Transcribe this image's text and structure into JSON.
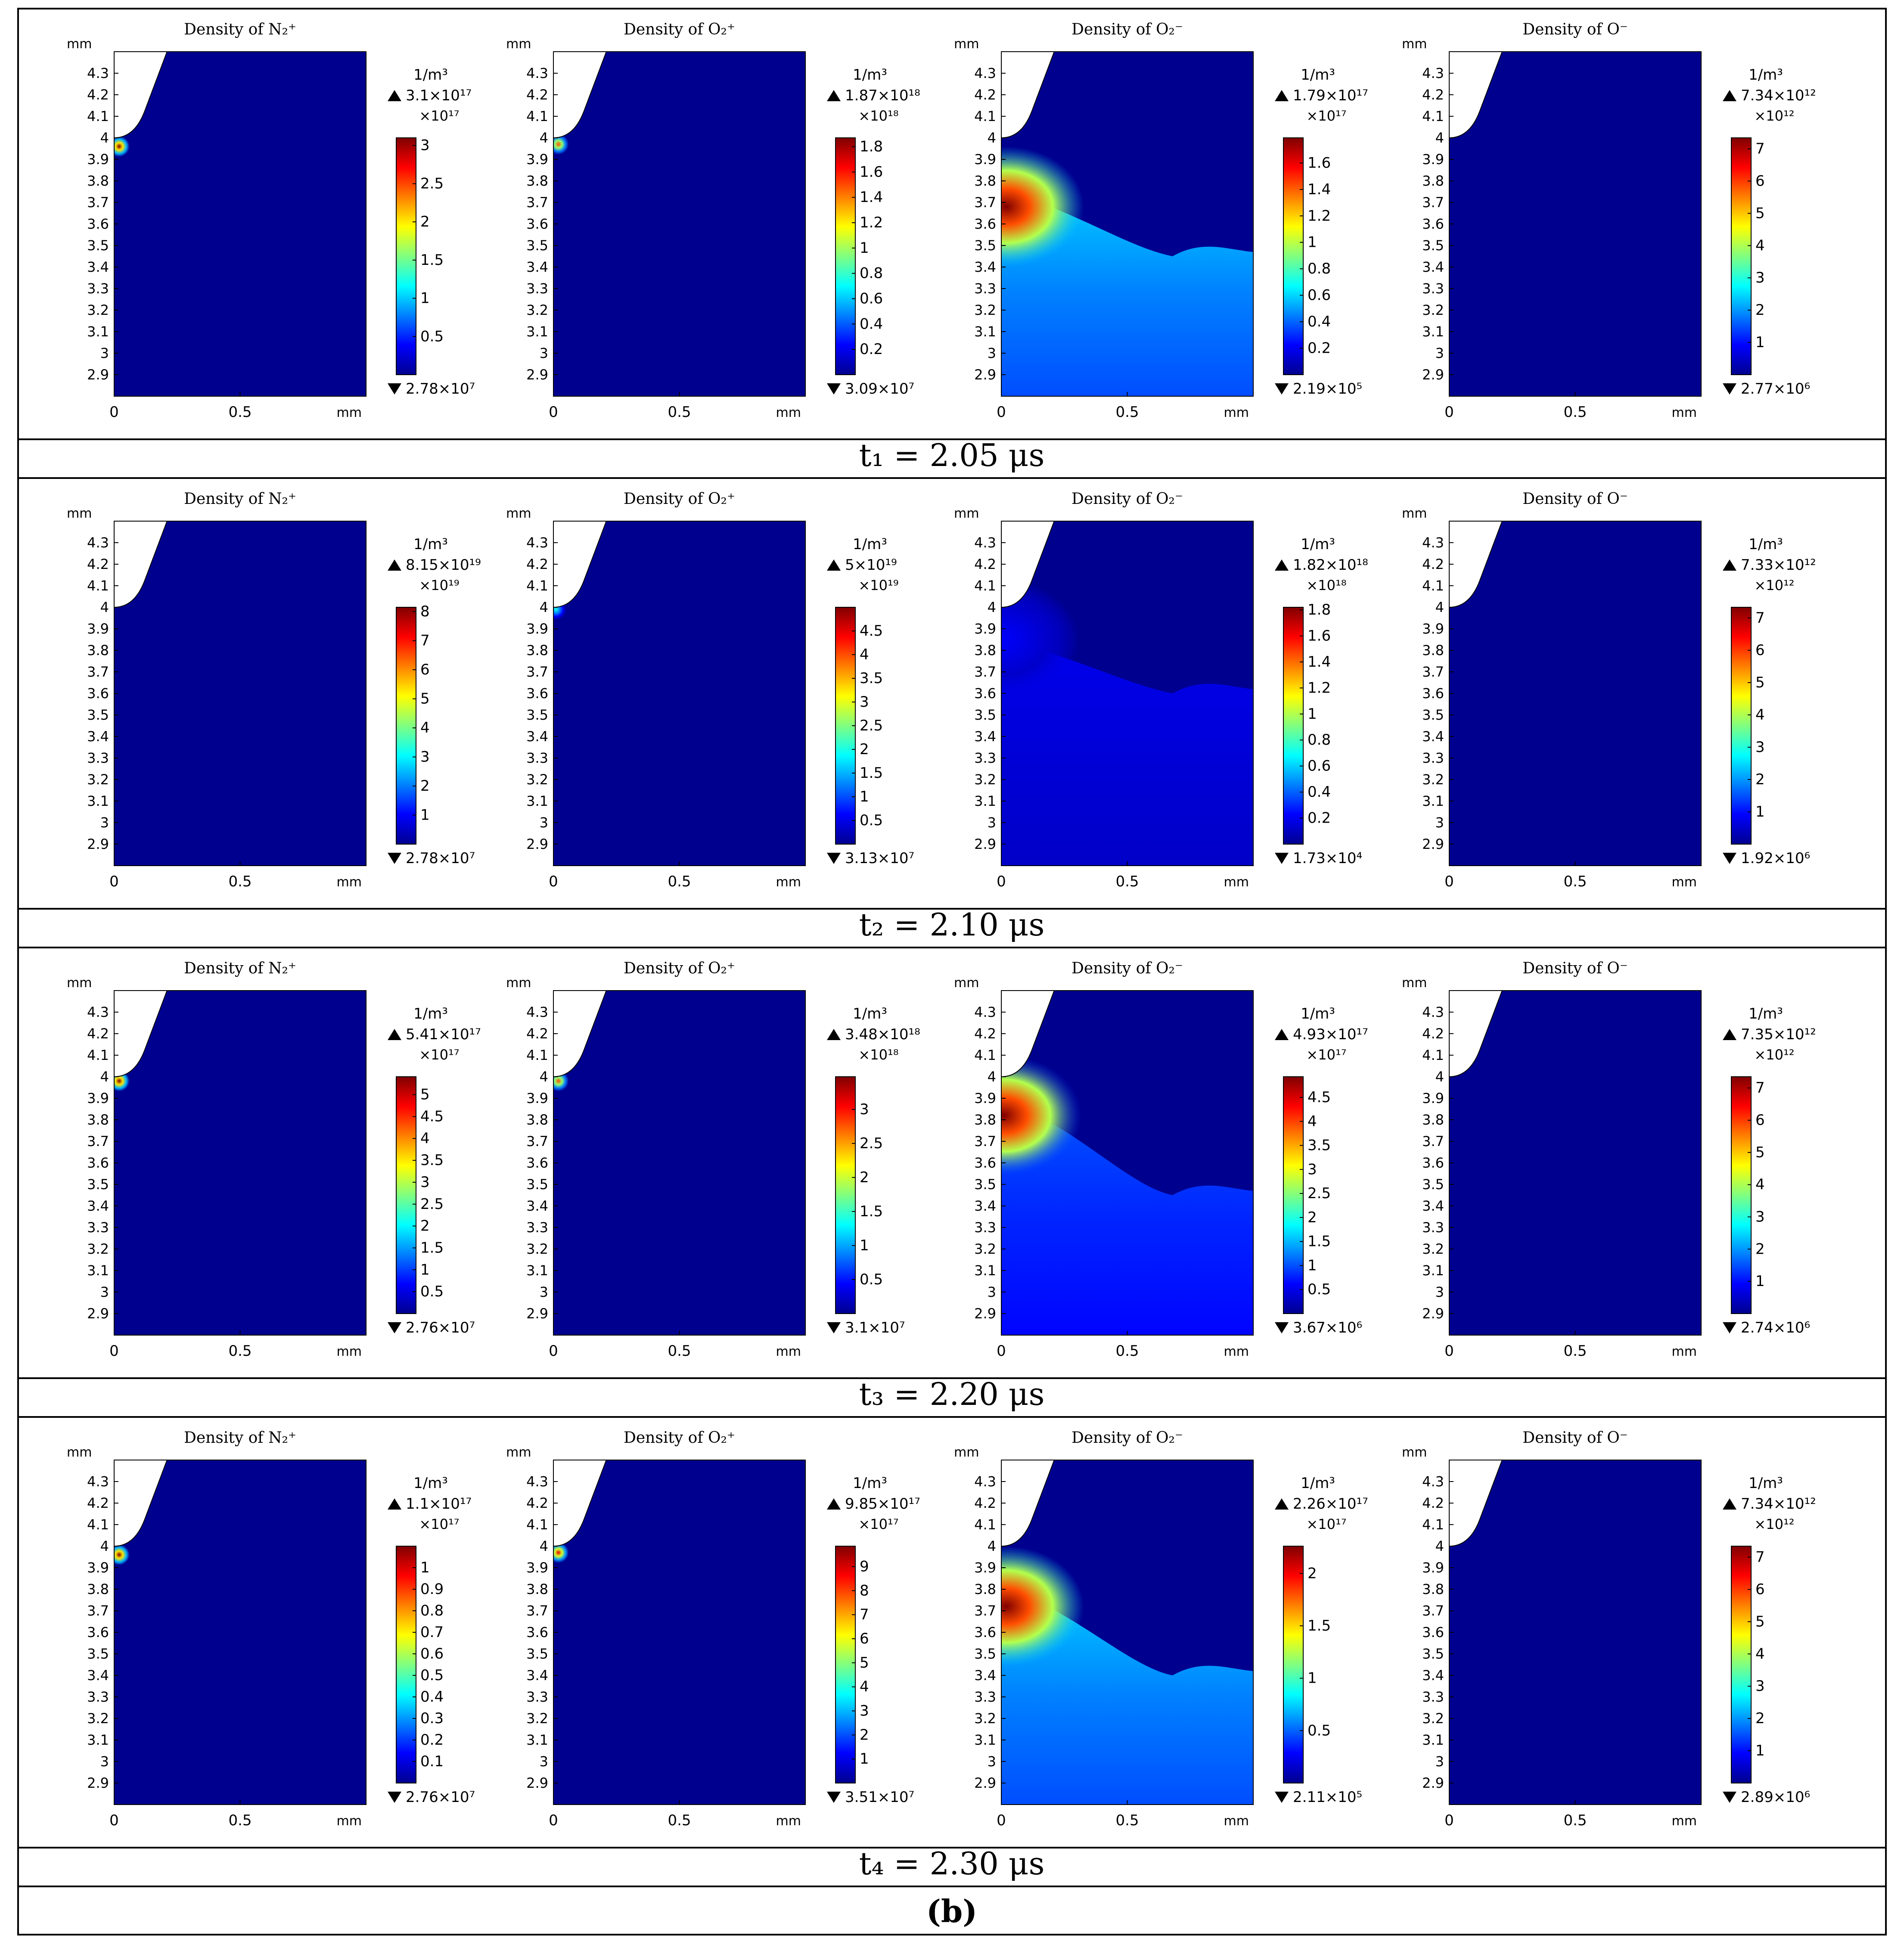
{
  "figure_label": "(b)",
  "rows": [
    {
      "time_label": "t₁ = 2.05 μs"
    },
    {
      "time_label": "t₂ = 2.10 μs"
    },
    {
      "time_label": "t₃ = 2.20 μs"
    },
    {
      "time_label": "t₄ = 2.30 μs"
    }
  ],
  "colors": {
    "field_background": "#00008f",
    "colormap": [
      "#00008f",
      "#0000ff",
      "#0080ff",
      "#00ffff",
      "#80ff80",
      "#ffff00",
      "#ff8000",
      "#ff0000",
      "#800000"
    ]
  },
  "chart_data": [
    {
      "type": "heatmap",
      "row": 0,
      "col": 0,
      "title": "Density of N₂⁺",
      "unit": "1/m³",
      "max_label": "3.1×10¹⁷",
      "min_label": "2.78×10⁷",
      "multiplier_label": "×10¹⁷",
      "ticks": [
        "3",
        "2.5",
        "2",
        "1.5",
        "1",
        "0.5"
      ],
      "tick_values": [
        3,
        2.5,
        2,
        1.5,
        1,
        0.5
      ],
      "range": [
        0,
        3.1
      ],
      "xlabel": "mm",
      "ylabel": "mm",
      "xlim": [
        0,
        1
      ],
      "ylim": [
        2.8,
        4.4
      ],
      "x_ticks": [
        "0",
        "0.5"
      ],
      "y_ticks": [
        "4.3",
        "4.2",
        "4.1",
        "4",
        "3.9",
        "3.8",
        "3.7",
        "3.6",
        "3.5",
        "3.4",
        "3.3",
        "3.2",
        "3.1",
        "3",
        "2.9"
      ],
      "hotspot": {
        "kind": "spot",
        "x": 0.02,
        "y": 3.96,
        "peak": 1.0
      }
    },
    {
      "type": "heatmap",
      "row": 0,
      "col": 1,
      "title": "Density of O₂⁺",
      "unit": "1/m³",
      "max_label": "1.87×10¹⁸",
      "min_label": "3.09×10⁷",
      "multiplier_label": "×10¹⁸",
      "ticks": [
        "1.8",
        "1.6",
        "1.4",
        "1.2",
        "1",
        "0.8",
        "0.6",
        "0.4",
        "0.2"
      ],
      "tick_values": [
        1.8,
        1.6,
        1.4,
        1.2,
        1,
        0.8,
        0.6,
        0.4,
        0.2
      ],
      "range": [
        0,
        1.87
      ],
      "xlabel": "mm",
      "ylabel": "mm",
      "xlim": [
        0,
        1
      ],
      "ylim": [
        2.8,
        4.4
      ],
      "x_ticks": [
        "0",
        "0.5"
      ],
      "y_ticks": [
        "4.3",
        "4.2",
        "4.1",
        "4",
        "3.9",
        "3.8",
        "3.7",
        "3.6",
        "3.5",
        "3.4",
        "3.3",
        "3.2",
        "3.1",
        "3",
        "2.9"
      ],
      "hotspot": {
        "kind": "spot",
        "x": 0.02,
        "y": 3.97,
        "peak": 0.8
      }
    },
    {
      "type": "heatmap",
      "row": 0,
      "col": 2,
      "title": "Density of O₂⁻",
      "unit": "1/m³",
      "max_label": "1.79×10¹⁷",
      "min_label": "2.19×10⁵",
      "multiplier_label": "×10¹⁷",
      "ticks": [
        "1.6",
        "1.4",
        "1.2",
        "1",
        "0.8",
        "0.6",
        "0.4",
        "0.2"
      ],
      "tick_values": [
        1.6,
        1.4,
        1.2,
        1,
        0.8,
        0.6,
        0.4,
        0.2
      ],
      "range": [
        0,
        1.79
      ],
      "xlabel": "mm",
      "ylabel": "mm",
      "xlim": [
        0,
        1
      ],
      "ylim": [
        2.8,
        4.4
      ],
      "x_ticks": [
        "0",
        "0.5"
      ],
      "y_ticks": [
        "4.3",
        "4.2",
        "4.1",
        "4",
        "3.9",
        "3.8",
        "3.7",
        "3.6",
        "3.5",
        "3.4",
        "3.3",
        "3.2",
        "3.1",
        "3",
        "2.9"
      ],
      "hotspot": {
        "kind": "plume",
        "x": 0.02,
        "y": 3.68,
        "peak": 1.0,
        "front_y": 3.75,
        "tail_y": 3.45,
        "background_level": 0.25
      }
    },
    {
      "type": "heatmap",
      "row": 0,
      "col": 3,
      "title": "Density of O⁻",
      "unit": "1/m³",
      "max_label": "7.34×10¹²",
      "min_label": "2.77×10⁶",
      "multiplier_label": "×10¹²",
      "ticks": [
        "7",
        "6",
        "5",
        "4",
        "3",
        "2",
        "1"
      ],
      "tick_values": [
        7,
        6,
        5,
        4,
        3,
        2,
        1
      ],
      "range": [
        0,
        7.34
      ],
      "xlabel": "mm",
      "ylabel": "mm",
      "xlim": [
        0,
        1
      ],
      "ylim": [
        2.8,
        4.4
      ],
      "x_ticks": [
        "0",
        "0.5"
      ],
      "y_ticks": [
        "4.3",
        "4.2",
        "4.1",
        "4",
        "3.9",
        "3.8",
        "3.7",
        "3.6",
        "3.5",
        "3.4",
        "3.3",
        "3.2",
        "3.1",
        "3",
        "2.9"
      ],
      "hotspot": {
        "kind": "none"
      }
    },
    {
      "type": "heatmap",
      "row": 1,
      "col": 0,
      "title": "Density of N₂⁺",
      "unit": "1/m³",
      "max_label": "8.15×10¹⁹",
      "min_label": "2.78×10⁷",
      "multiplier_label": "×10¹⁹",
      "ticks": [
        "8",
        "7",
        "6",
        "5",
        "4",
        "3",
        "2",
        "1"
      ],
      "tick_values": [
        8,
        7,
        6,
        5,
        4,
        3,
        2,
        1
      ],
      "range": [
        0,
        8.15
      ],
      "xlabel": "mm",
      "ylabel": "mm",
      "xlim": [
        0,
        1
      ],
      "ylim": [
        2.8,
        4.4
      ],
      "x_ticks": [
        "0",
        "0.5"
      ],
      "y_ticks": [
        "4.3",
        "4.2",
        "4.1",
        "4",
        "3.9",
        "3.8",
        "3.7",
        "3.6",
        "3.5",
        "3.4",
        "3.3",
        "3.2",
        "3.1",
        "3",
        "2.9"
      ],
      "hotspot": {
        "kind": "none"
      }
    },
    {
      "type": "heatmap",
      "row": 1,
      "col": 1,
      "title": "Density of O₂⁺",
      "unit": "1/m³",
      "max_label": "5×10¹⁹",
      "min_label": "3.13×10⁷",
      "multiplier_label": "×10¹⁹",
      "ticks": [
        "4.5",
        "4",
        "3.5",
        "3",
        "2.5",
        "2",
        "1.5",
        "1",
        "0.5"
      ],
      "tick_values": [
        4.5,
        4,
        3.5,
        3,
        2.5,
        2,
        1.5,
        1,
        0.5
      ],
      "range": [
        0,
        5
      ],
      "xlabel": "mm",
      "ylabel": "mm",
      "xlim": [
        0,
        1
      ],
      "ylim": [
        2.8,
        4.4
      ],
      "x_ticks": [
        "0",
        "0.5"
      ],
      "y_ticks": [
        "4.3",
        "4.2",
        "4.1",
        "4",
        "3.9",
        "3.8",
        "3.7",
        "3.6",
        "3.5",
        "3.4",
        "3.3",
        "3.2",
        "3.1",
        "3",
        "2.9"
      ],
      "hotspot": {
        "kind": "spot",
        "x": 0.01,
        "y": 3.99,
        "peak": 0.4
      }
    },
    {
      "type": "heatmap",
      "row": 1,
      "col": 2,
      "title": "Density of O₂⁻",
      "unit": "1/m³",
      "max_label": "1.82×10¹⁸",
      "min_label": "1.73×10⁴",
      "multiplier_label": "×10¹⁸",
      "ticks": [
        "1.8",
        "1.6",
        "1.4",
        "1.2",
        "1",
        "0.8",
        "0.6",
        "0.4",
        "0.2"
      ],
      "tick_values": [
        1.8,
        1.6,
        1.4,
        1.2,
        1,
        0.8,
        0.6,
        0.4,
        0.2
      ],
      "range": [
        0,
        1.82
      ],
      "xlabel": "mm",
      "ylabel": "mm",
      "xlim": [
        0,
        1
      ],
      "ylim": [
        2.8,
        4.4
      ],
      "x_ticks": [
        "0",
        "0.5"
      ],
      "y_ticks": [
        "4.3",
        "4.2",
        "4.1",
        "4",
        "3.9",
        "3.8",
        "3.7",
        "3.6",
        "3.5",
        "3.4",
        "3.3",
        "3.2",
        "3.1",
        "3",
        "2.9"
      ],
      "hotspot": {
        "kind": "plume",
        "x": 0.0,
        "y": 3.85,
        "peak": 0.12,
        "front_y": 3.85,
        "tail_y": 3.6,
        "background_level": 0.08
      }
    },
    {
      "type": "heatmap",
      "row": 1,
      "col": 3,
      "title": "Density of O⁻",
      "unit": "1/m³",
      "max_label": "7.33×10¹²",
      "min_label": "1.92×10⁶",
      "multiplier_label": "×10¹²",
      "ticks": [
        "7",
        "6",
        "5",
        "4",
        "3",
        "2",
        "1"
      ],
      "tick_values": [
        7,
        6,
        5,
        4,
        3,
        2,
        1
      ],
      "range": [
        0,
        7.33
      ],
      "xlabel": "mm",
      "ylabel": "mm",
      "xlim": [
        0,
        1
      ],
      "ylim": [
        2.8,
        4.4
      ],
      "x_ticks": [
        "0",
        "0.5"
      ],
      "y_ticks": [
        "4.3",
        "4.2",
        "4.1",
        "4",
        "3.9",
        "3.8",
        "3.7",
        "3.6",
        "3.5",
        "3.4",
        "3.3",
        "3.2",
        "3.1",
        "3",
        "2.9"
      ],
      "hotspot": {
        "kind": "none"
      }
    },
    {
      "type": "heatmap",
      "row": 2,
      "col": 0,
      "title": "Density of N₂⁺",
      "unit": "1/m³",
      "max_label": "5.41×10¹⁷",
      "min_label": "2.76×10⁷",
      "multiplier_label": "×10¹⁷",
      "ticks": [
        "5",
        "4.5",
        "4",
        "3.5",
        "3",
        "2.5",
        "2",
        "1.5",
        "1",
        "0.5"
      ],
      "tick_values": [
        5,
        4.5,
        4,
        3.5,
        3,
        2.5,
        2,
        1.5,
        1,
        0.5
      ],
      "range": [
        0,
        5.41
      ],
      "xlabel": "mm",
      "ylabel": "mm",
      "xlim": [
        0,
        1
      ],
      "ylim": [
        2.8,
        4.4
      ],
      "x_ticks": [
        "0",
        "0.5"
      ],
      "y_ticks": [
        "4.3",
        "4.2",
        "4.1",
        "4",
        "3.9",
        "3.8",
        "3.7",
        "3.6",
        "3.5",
        "3.4",
        "3.3",
        "3.2",
        "3.1",
        "3",
        "2.9"
      ],
      "hotspot": {
        "kind": "spot",
        "x": 0.02,
        "y": 3.98,
        "peak": 1.0
      }
    },
    {
      "type": "heatmap",
      "row": 2,
      "col": 1,
      "title": "Density of O₂⁺",
      "unit": "1/m³",
      "max_label": "3.48×10¹⁸",
      "min_label": "3.1×10⁷",
      "multiplier_label": "×10¹⁸",
      "ticks": [
        "3",
        "2.5",
        "2",
        "1.5",
        "1",
        "0.5"
      ],
      "tick_values": [
        3,
        2.5,
        2,
        1.5,
        1,
        0.5
      ],
      "range": [
        0,
        3.48
      ],
      "xlabel": "mm",
      "ylabel": "mm",
      "xlim": [
        0,
        1
      ],
      "ylim": [
        2.8,
        4.4
      ],
      "x_ticks": [
        "0",
        "0.5"
      ],
      "y_ticks": [
        "4.3",
        "4.2",
        "4.1",
        "4",
        "3.9",
        "3.8",
        "3.7",
        "3.6",
        "3.5",
        "3.4",
        "3.3",
        "3.2",
        "3.1",
        "3",
        "2.9"
      ],
      "hotspot": {
        "kind": "spot",
        "x": 0.02,
        "y": 3.98,
        "peak": 0.8
      }
    },
    {
      "type": "heatmap",
      "row": 2,
      "col": 2,
      "title": "Density of O₂⁻",
      "unit": "1/m³",
      "max_label": "4.93×10¹⁷",
      "min_label": "3.67×10⁶",
      "multiplier_label": "×10¹⁷",
      "ticks": [
        "4.5",
        "4",
        "3.5",
        "3",
        "2.5",
        "2",
        "1.5",
        "1",
        "0.5"
      ],
      "tick_values": [
        4.5,
        4,
        3.5,
        3,
        2.5,
        2,
        1.5,
        1,
        0.5
      ],
      "range": [
        0,
        4.93
      ],
      "xlabel": "mm",
      "ylabel": "mm",
      "xlim": [
        0,
        1
      ],
      "ylim": [
        2.8,
        4.4
      ],
      "x_ticks": [
        "0",
        "0.5"
      ],
      "y_ticks": [
        "4.3",
        "4.2",
        "4.1",
        "4",
        "3.9",
        "3.8",
        "3.7",
        "3.6",
        "3.5",
        "3.4",
        "3.3",
        "3.2",
        "3.1",
        "3",
        "2.9"
      ],
      "hotspot": {
        "kind": "plume",
        "x": 0.01,
        "y": 3.82,
        "peak": 1.0,
        "front_y": 3.88,
        "tail_y": 3.45,
        "background_level": 0.16
      }
    },
    {
      "type": "heatmap",
      "row": 2,
      "col": 3,
      "title": "Density of O⁻",
      "unit": "1/m³",
      "max_label": "7.35×10¹²",
      "min_label": "2.74×10⁶",
      "multiplier_label": "×10¹²",
      "ticks": [
        "7",
        "6",
        "5",
        "4",
        "3",
        "2",
        "1"
      ],
      "tick_values": [
        7,
        6,
        5,
        4,
        3,
        2,
        1
      ],
      "range": [
        0,
        7.35
      ],
      "xlabel": "mm",
      "ylabel": "mm",
      "xlim": [
        0,
        1
      ],
      "ylim": [
        2.8,
        4.4
      ],
      "x_ticks": [
        "0",
        "0.5"
      ],
      "y_ticks": [
        "4.3",
        "4.2",
        "4.1",
        "4",
        "3.9",
        "3.8",
        "3.7",
        "3.6",
        "3.5",
        "3.4",
        "3.3",
        "3.2",
        "3.1",
        "3",
        "2.9"
      ],
      "hotspot": {
        "kind": "none"
      }
    },
    {
      "type": "heatmap",
      "row": 3,
      "col": 0,
      "title": "Density of N₂⁺",
      "unit": "1/m³",
      "max_label": "1.1×10¹⁷",
      "min_label": "2.76×10⁷",
      "multiplier_label": "×10¹⁷",
      "ticks": [
        "1",
        "0.9",
        "0.8",
        "0.7",
        "0.6",
        "0.5",
        "0.4",
        "0.3",
        "0.2",
        "0.1"
      ],
      "tick_values": [
        1,
        0.9,
        0.8,
        0.7,
        0.6,
        0.5,
        0.4,
        0.3,
        0.2,
        0.1
      ],
      "range": [
        0,
        1.1
      ],
      "xlabel": "mm",
      "ylabel": "mm",
      "xlim": [
        0,
        1
      ],
      "ylim": [
        2.8,
        4.4
      ],
      "x_ticks": [
        "0",
        "0.5"
      ],
      "y_ticks": [
        "4.3",
        "4.2",
        "4.1",
        "4",
        "3.9",
        "3.8",
        "3.7",
        "3.6",
        "3.5",
        "3.4",
        "3.3",
        "3.2",
        "3.1",
        "3",
        "2.9"
      ],
      "hotspot": {
        "kind": "spot",
        "x": 0.02,
        "y": 3.96,
        "peak": 1.0
      }
    },
    {
      "type": "heatmap",
      "row": 3,
      "col": 1,
      "title": "Density of O₂⁺",
      "unit": "1/m³",
      "max_label": "9.85×10¹⁷",
      "min_label": "3.51×10⁷",
      "multiplier_label": "×10¹⁷",
      "ticks": [
        "9",
        "8",
        "7",
        "6",
        "5",
        "4",
        "3",
        "2",
        "1"
      ],
      "tick_values": [
        9,
        8,
        7,
        6,
        5,
        4,
        3,
        2,
        1
      ],
      "range": [
        0,
        9.85
      ],
      "xlabel": "mm",
      "ylabel": "mm",
      "xlim": [
        0,
        1
      ],
      "ylim": [
        2.8,
        4.4
      ],
      "x_ticks": [
        "0",
        "0.5"
      ],
      "y_ticks": [
        "4.3",
        "4.2",
        "4.1",
        "4",
        "3.9",
        "3.8",
        "3.7",
        "3.6",
        "3.5",
        "3.4",
        "3.3",
        "3.2",
        "3.1",
        "3",
        "2.9"
      ],
      "hotspot": {
        "kind": "spot",
        "x": 0.02,
        "y": 3.97,
        "peak": 0.9
      }
    },
    {
      "type": "heatmap",
      "row": 3,
      "col": 2,
      "title": "Density of O₂⁻",
      "unit": "1/m³",
      "max_label": "2.26×10¹⁷",
      "min_label": "2.11×10⁵",
      "multiplier_label": "×10¹⁷",
      "ticks": [
        "2",
        "1.5",
        "1",
        "0.5"
      ],
      "tick_values": [
        2,
        1.5,
        1,
        0.5
      ],
      "range": [
        0,
        2.26
      ],
      "xlabel": "mm",
      "ylabel": "mm",
      "xlim": [
        0,
        1
      ],
      "ylim": [
        2.8,
        4.4
      ],
      "x_ticks": [
        "0",
        "0.5"
      ],
      "y_ticks": [
        "4.3",
        "4.2",
        "4.1",
        "4",
        "3.9",
        "3.8",
        "3.7",
        "3.6",
        "3.5",
        "3.4",
        "3.3",
        "3.2",
        "3.1",
        "3",
        "2.9"
      ],
      "hotspot": {
        "kind": "plume",
        "x": 0.02,
        "y": 3.72,
        "peak": 1.0,
        "front_y": 3.8,
        "tail_y": 3.4,
        "background_level": 0.25
      }
    },
    {
      "type": "heatmap",
      "row": 3,
      "col": 3,
      "title": "Density of O⁻",
      "unit": "1/m³",
      "max_label": "7.34×10¹²",
      "min_label": "2.89×10⁶",
      "multiplier_label": "×10¹²",
      "ticks": [
        "7",
        "6",
        "5",
        "4",
        "3",
        "2",
        "1"
      ],
      "tick_values": [
        7,
        6,
        5,
        4,
        3,
        2,
        1
      ],
      "range": [
        0,
        7.34
      ],
      "xlabel": "mm",
      "ylabel": "mm",
      "xlim": [
        0,
        1
      ],
      "ylim": [
        2.8,
        4.4
      ],
      "x_ticks": [
        "0",
        "0.5"
      ],
      "y_ticks": [
        "4.3",
        "4.2",
        "4.1",
        "4",
        "3.9",
        "3.8",
        "3.7",
        "3.6",
        "3.5",
        "3.4",
        "3.3",
        "3.2",
        "3.1",
        "3",
        "2.9"
      ],
      "hotspot": {
        "kind": "none"
      }
    }
  ]
}
